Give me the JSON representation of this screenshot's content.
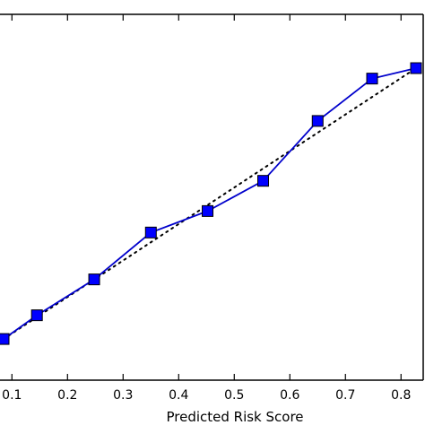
{
  "chart_data": {
    "type": "line",
    "xlabel": "Predicted Risk Score",
    "xlim": [
      0.08,
      0.835
    ],
    "ylim": [
      0.0,
      1.0
    ],
    "x_ticks": [
      "0.1",
      "0.2",
      "0.3",
      "0.4",
      "0.5",
      "0.6",
      "0.7",
      "0.8"
    ],
    "x_tick_values": [
      0.1,
      0.2,
      0.3,
      0.4,
      0.5,
      0.6,
      0.7,
      0.8
    ],
    "series": [
      {
        "type": "line-marker",
        "color": "#0000cc",
        "marker_color": "#0000ff",
        "x": [
          0.085,
          0.145,
          0.248,
          0.35,
          0.452,
          0.552,
          0.65,
          0.748,
          0.827
        ],
        "y": [
          0.041,
          0.125,
          0.252,
          0.418,
          0.494,
          0.601,
          0.813,
          0.963,
          1.0
        ]
      },
      {
        "type": "reference-diagonal",
        "style": "dotted",
        "color": "#000000",
        "x": [
          0.085,
          0.827
        ],
        "y": [
          0.041,
          1.0
        ]
      }
    ]
  }
}
